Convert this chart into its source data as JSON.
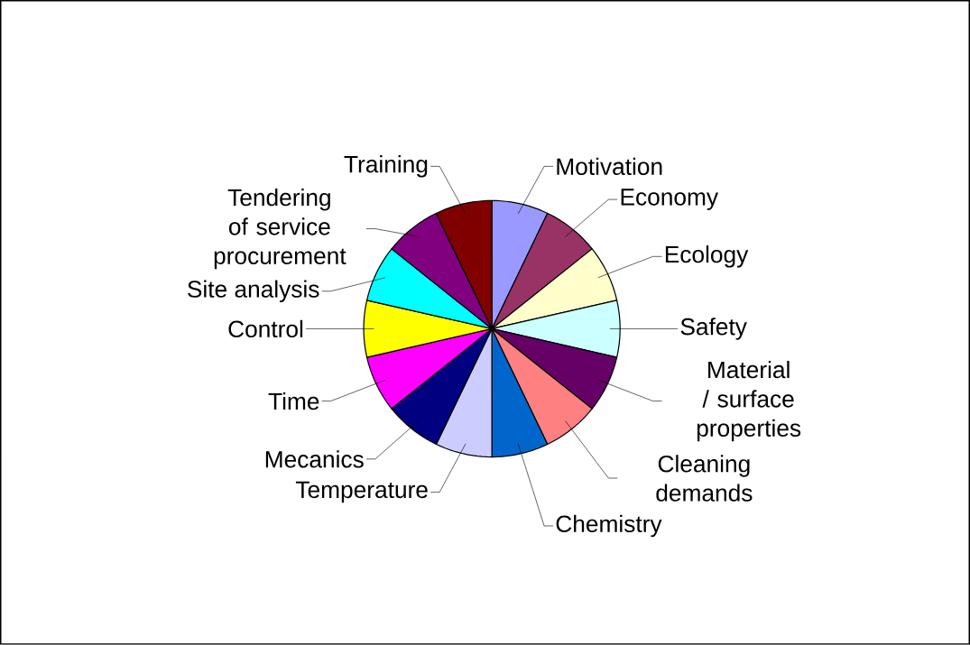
{
  "chart_data": {
    "type": "pie",
    "categories": [
      "Motivation",
      "Economy",
      "Ecology",
      "Safety",
      "Material / surface properties",
      "Cleaning demands",
      "Chemistry",
      "Temperature",
      "Mecanics",
      "Time",
      "Control",
      "Site analysis",
      "Tendering of service procurement",
      "Training"
    ],
    "values": [
      7.14,
      7.14,
      7.14,
      7.14,
      7.14,
      7.14,
      7.14,
      7.14,
      7.14,
      7.14,
      7.14,
      7.14,
      7.14,
      7.14
    ],
    "colors": [
      "#9999ff",
      "#993366",
      "#ffffcc",
      "#ccffff",
      "#660066",
      "#ff8080",
      "#0066cc",
      "#ccccff",
      "#000080",
      "#ff00ff",
      "#ffff00",
      "#00ffff",
      "#800080",
      "#800000"
    ]
  }
}
